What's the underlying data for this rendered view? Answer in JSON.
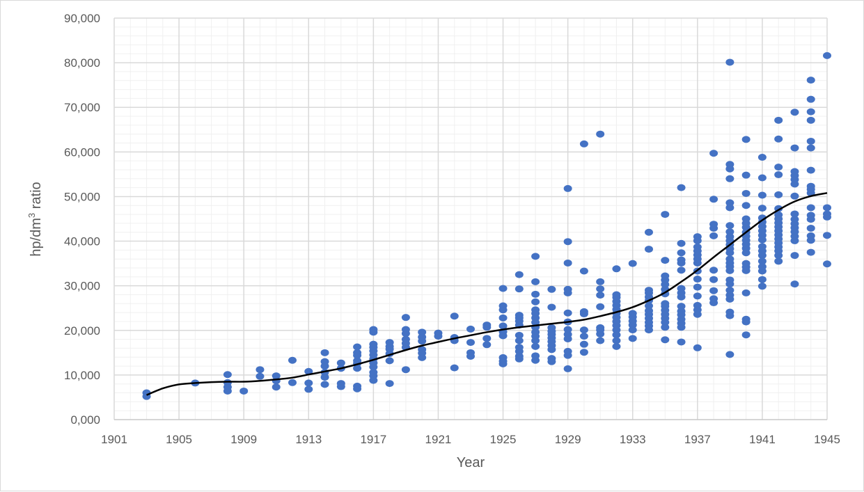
{
  "chart_data": {
    "type": "scatter",
    "xlabel": "Year",
    "ylabel_main": "hp/dm",
    "ylabel_sup": "3",
    "ylabel_tail": " ratio",
    "xlim": [
      1901,
      1945
    ],
    "ylim": [
      0,
      90000
    ],
    "x_ticks": [
      1901,
      1905,
      1909,
      1913,
      1917,
      1921,
      1925,
      1929,
      1933,
      1937,
      1941,
      1945
    ],
    "x_tick_labels": [
      "1901",
      "1905",
      "1909",
      "1913",
      "1917",
      "1921",
      "1925",
      "1929",
      "1933",
      "1937",
      "1941",
      "1945"
    ],
    "y_ticks": [
      0,
      10000,
      20000,
      30000,
      40000,
      50000,
      60000,
      70000,
      80000,
      90000
    ],
    "y_tick_labels": [
      "0,000",
      "10,000",
      "20,000",
      "30,000",
      "40,000",
      "50,000",
      "60,000",
      "70,000",
      "80,000",
      "90,000"
    ],
    "grid": {
      "major": true,
      "minor": true
    },
    "colors": {
      "points": "#4472c4",
      "trend": "#000000",
      "grid_major": "#d9d9d9",
      "grid_minor": "#f0f0f0",
      "text": "#595959"
    },
    "points": [
      [
        1903,
        5200
      ],
      [
        1903,
        6000
      ],
      [
        1906,
        8200
      ],
      [
        1908,
        6400
      ],
      [
        1908,
        7300
      ],
      [
        1908,
        8300
      ],
      [
        1908,
        10100
      ],
      [
        1909,
        6400
      ],
      [
        1910,
        9700
      ],
      [
        1910,
        11200
      ],
      [
        1911,
        7300
      ],
      [
        1911,
        8700
      ],
      [
        1911,
        9800
      ],
      [
        1912,
        8300
      ],
      [
        1912,
        13300
      ],
      [
        1913,
        6800
      ],
      [
        1913,
        8200
      ],
      [
        1913,
        10800
      ],
      [
        1914,
        7900
      ],
      [
        1914,
        9500
      ],
      [
        1914,
        10600
      ],
      [
        1914,
        12000
      ],
      [
        1914,
        13000
      ],
      [
        1914,
        15000
      ],
      [
        1915,
        7400
      ],
      [
        1915,
        8100
      ],
      [
        1915,
        11500
      ],
      [
        1915,
        12700
      ],
      [
        1916,
        6900
      ],
      [
        1916,
        7500
      ],
      [
        1916,
        11500
      ],
      [
        1916,
        12600
      ],
      [
        1916,
        13200
      ],
      [
        1916,
        14400
      ],
      [
        1916,
        15000
      ],
      [
        1916,
        16300
      ],
      [
        1917,
        8800
      ],
      [
        1917,
        9800
      ],
      [
        1917,
        10600
      ],
      [
        1917,
        11800
      ],
      [
        1917,
        12700
      ],
      [
        1917,
        13600
      ],
      [
        1917,
        14500
      ],
      [
        1917,
        15400
      ],
      [
        1917,
        16200
      ],
      [
        1917,
        16900
      ],
      [
        1917,
        19600
      ],
      [
        1917,
        20200
      ],
      [
        1918,
        8100
      ],
      [
        1918,
        13200
      ],
      [
        1918,
        14800
      ],
      [
        1918,
        15800
      ],
      [
        1918,
        16400
      ],
      [
        1918,
        17300
      ],
      [
        1919,
        11200
      ],
      [
        1919,
        16200
      ],
      [
        1919,
        17100
      ],
      [
        1919,
        18000
      ],
      [
        1919,
        19300
      ],
      [
        1919,
        20200
      ],
      [
        1919,
        22900
      ],
      [
        1920,
        13900
      ],
      [
        1920,
        14900
      ],
      [
        1920,
        15700
      ],
      [
        1920,
        17600
      ],
      [
        1920,
        18500
      ],
      [
        1920,
        19600
      ],
      [
        1921,
        18700
      ],
      [
        1921,
        19400
      ],
      [
        1922,
        11600
      ],
      [
        1922,
        17700
      ],
      [
        1922,
        18400
      ],
      [
        1922,
        23200
      ],
      [
        1923,
        14200
      ],
      [
        1923,
        15000
      ],
      [
        1923,
        17300
      ],
      [
        1923,
        20300
      ],
      [
        1924,
        16800
      ],
      [
        1924,
        18200
      ],
      [
        1924,
        20700
      ],
      [
        1924,
        21200
      ],
      [
        1925,
        12500
      ],
      [
        1925,
        13100
      ],
      [
        1925,
        13900
      ],
      [
        1925,
        18800
      ],
      [
        1925,
        19700
      ],
      [
        1925,
        21000
      ],
      [
        1925,
        22800
      ],
      [
        1925,
        24600
      ],
      [
        1925,
        25500
      ],
      [
        1925,
        29400
      ],
      [
        1926,
        13600
      ],
      [
        1926,
        14200
      ],
      [
        1926,
        15300
      ],
      [
        1926,
        16200
      ],
      [
        1926,
        17700
      ],
      [
        1926,
        18900
      ],
      [
        1926,
        21200
      ],
      [
        1926,
        22100
      ],
      [
        1926,
        22800
      ],
      [
        1926,
        23400
      ],
      [
        1926,
        29300
      ],
      [
        1926,
        32500
      ],
      [
        1927,
        13300
      ],
      [
        1927,
        14300
      ],
      [
        1927,
        16400
      ],
      [
        1927,
        17700
      ],
      [
        1927,
        18700
      ],
      [
        1927,
        19600
      ],
      [
        1927,
        20700
      ],
      [
        1927,
        21800
      ],
      [
        1927,
        22800
      ],
      [
        1927,
        23800
      ],
      [
        1927,
        24600
      ],
      [
        1927,
        26400
      ],
      [
        1927,
        28100
      ],
      [
        1927,
        30900
      ],
      [
        1927,
        36600
      ],
      [
        1928,
        13000
      ],
      [
        1928,
        13700
      ],
      [
        1928,
        15700
      ],
      [
        1928,
        16600
      ],
      [
        1928,
        17500
      ],
      [
        1928,
        18300
      ],
      [
        1928,
        19100
      ],
      [
        1928,
        19800
      ],
      [
        1928,
        20600
      ],
      [
        1928,
        25200
      ],
      [
        1928,
        29200
      ],
      [
        1929,
        11400
      ],
      [
        1929,
        14400
      ],
      [
        1929,
        15300
      ],
      [
        1929,
        18100
      ],
      [
        1929,
        19100
      ],
      [
        1929,
        20200
      ],
      [
        1929,
        21900
      ],
      [
        1929,
        23900
      ],
      [
        1929,
        28400
      ],
      [
        1929,
        29200
      ],
      [
        1929,
        35100
      ],
      [
        1929,
        39900
      ],
      [
        1929,
        51800
      ],
      [
        1930,
        15100
      ],
      [
        1930,
        16900
      ],
      [
        1930,
        18700
      ],
      [
        1930,
        20100
      ],
      [
        1930,
        23700
      ],
      [
        1930,
        24200
      ],
      [
        1930,
        33300
      ],
      [
        1930,
        61800
      ],
      [
        1931,
        17700
      ],
      [
        1931,
        19200
      ],
      [
        1931,
        20100
      ],
      [
        1931,
        20600
      ],
      [
        1931,
        25300
      ],
      [
        1931,
        27900
      ],
      [
        1931,
        29300
      ],
      [
        1931,
        30900
      ],
      [
        1931,
        64000
      ],
      [
        1932,
        16400
      ],
      [
        1932,
        17700
      ],
      [
        1932,
        19000
      ],
      [
        1932,
        20100
      ],
      [
        1932,
        21100
      ],
      [
        1932,
        22000
      ],
      [
        1932,
        22900
      ],
      [
        1932,
        23800
      ],
      [
        1932,
        24700
      ],
      [
        1932,
        25600
      ],
      [
        1932,
        26500
      ],
      [
        1932,
        27400
      ],
      [
        1932,
        28000
      ],
      [
        1932,
        33800
      ],
      [
        1933,
        18200
      ],
      [
        1933,
        20100
      ],
      [
        1933,
        21200
      ],
      [
        1933,
        22100
      ],
      [
        1933,
        23000
      ],
      [
        1933,
        23800
      ],
      [
        1933,
        35000
      ],
      [
        1934,
        20100
      ],
      [
        1934,
        21000
      ],
      [
        1934,
        21800
      ],
      [
        1934,
        22700
      ],
      [
        1934,
        23600
      ],
      [
        1934,
        24400
      ],
      [
        1934,
        25500
      ],
      [
        1934,
        26700
      ],
      [
        1934,
        27500
      ],
      [
        1934,
        28400
      ],
      [
        1934,
        29000
      ],
      [
        1934,
        38200
      ],
      [
        1934,
        42000
      ],
      [
        1935,
        17900
      ],
      [
        1935,
        20700
      ],
      [
        1935,
        21800
      ],
      [
        1935,
        22700
      ],
      [
        1935,
        23600
      ],
      [
        1935,
        24500
      ],
      [
        1935,
        25400
      ],
      [
        1935,
        26000
      ],
      [
        1935,
        28200
      ],
      [
        1935,
        29200
      ],
      [
        1935,
        30300
      ],
      [
        1935,
        31300
      ],
      [
        1935,
        32200
      ],
      [
        1935,
        35700
      ],
      [
        1935,
        46000
      ],
      [
        1936,
        17400
      ],
      [
        1936,
        20700
      ],
      [
        1936,
        21600
      ],
      [
        1936,
        22500
      ],
      [
        1936,
        23500
      ],
      [
        1936,
        24300
      ],
      [
        1936,
        25400
      ],
      [
        1936,
        27500
      ],
      [
        1936,
        28400
      ],
      [
        1936,
        29400
      ],
      [
        1936,
        33500
      ],
      [
        1936,
        35100
      ],
      [
        1936,
        35800
      ],
      [
        1936,
        37400
      ],
      [
        1936,
        39500
      ],
      [
        1936,
        52000
      ],
      [
        1937,
        16100
      ],
      [
        1937,
        23600
      ],
      [
        1937,
        24600
      ],
      [
        1937,
        25600
      ],
      [
        1937,
        27700
      ],
      [
        1937,
        29700
      ],
      [
        1937,
        31500
      ],
      [
        1937,
        33300
      ],
      [
        1937,
        35100
      ],
      [
        1937,
        36000
      ],
      [
        1937,
        36900
      ],
      [
        1937,
        37800
      ],
      [
        1937,
        38700
      ],
      [
        1937,
        40100
      ],
      [
        1937,
        41000
      ],
      [
        1938,
        26200
      ],
      [
        1938,
        27100
      ],
      [
        1938,
        28900
      ],
      [
        1938,
        31400
      ],
      [
        1938,
        33500
      ],
      [
        1938,
        41200
      ],
      [
        1938,
        42900
      ],
      [
        1938,
        43800
      ],
      [
        1938,
        49400
      ],
      [
        1938,
        59700
      ],
      [
        1939,
        14600
      ],
      [
        1939,
        23300
      ],
      [
        1939,
        24100
      ],
      [
        1939,
        27000
      ],
      [
        1939,
        27900
      ],
      [
        1939,
        29000
      ],
      [
        1939,
        30400
      ],
      [
        1939,
        31300
      ],
      [
        1939,
        33400
      ],
      [
        1939,
        34300
      ],
      [
        1939,
        35100
      ],
      [
        1939,
        36000
      ],
      [
        1939,
        37400
      ],
      [
        1939,
        38300
      ],
      [
        1939,
        39200
      ],
      [
        1939,
        40100
      ],
      [
        1939,
        41000
      ],
      [
        1939,
        42100
      ],
      [
        1939,
        43500
      ],
      [
        1939,
        47500
      ],
      [
        1939,
        48600
      ],
      [
        1939,
        54000
      ],
      [
        1939,
        56200
      ],
      [
        1939,
        57200
      ],
      [
        1939,
        80100
      ],
      [
        1940,
        19000
      ],
      [
        1940,
        21900
      ],
      [
        1940,
        22500
      ],
      [
        1940,
        28400
      ],
      [
        1940,
        33400
      ],
      [
        1940,
        34200
      ],
      [
        1940,
        35000
      ],
      [
        1940,
        37400
      ],
      [
        1940,
        38400
      ],
      [
        1940,
        39300
      ],
      [
        1940,
        40200
      ],
      [
        1940,
        41100
      ],
      [
        1940,
        42000
      ],
      [
        1940,
        43100
      ],
      [
        1940,
        44000
      ],
      [
        1940,
        45000
      ],
      [
        1940,
        48000
      ],
      [
        1940,
        50700
      ],
      [
        1940,
        54800
      ],
      [
        1940,
        62800
      ],
      [
        1941,
        29900
      ],
      [
        1941,
        31400
      ],
      [
        1941,
        33300
      ],
      [
        1941,
        34300
      ],
      [
        1941,
        35500
      ],
      [
        1941,
        36800
      ],
      [
        1941,
        37800
      ],
      [
        1941,
        38800
      ],
      [
        1941,
        40300
      ],
      [
        1941,
        41300
      ],
      [
        1941,
        42300
      ],
      [
        1941,
        43300
      ],
      [
        1941,
        44300
      ],
      [
        1941,
        45200
      ],
      [
        1941,
        47400
      ],
      [
        1941,
        50300
      ],
      [
        1941,
        54200
      ],
      [
        1941,
        58800
      ],
      [
        1942,
        35500
      ],
      [
        1942,
        36800
      ],
      [
        1942,
        37800
      ],
      [
        1942,
        38700
      ],
      [
        1942,
        39600
      ],
      [
        1942,
        40500
      ],
      [
        1942,
        41400
      ],
      [
        1942,
        42300
      ],
      [
        1942,
        43200
      ],
      [
        1942,
        44100
      ],
      [
        1942,
        45000
      ],
      [
        1942,
        45900
      ],
      [
        1942,
        47300
      ],
      [
        1942,
        50400
      ],
      [
        1942,
        54900
      ],
      [
        1942,
        56600
      ],
      [
        1942,
        62900
      ],
      [
        1942,
        67100
      ],
      [
        1943,
        30400
      ],
      [
        1943,
        36800
      ],
      [
        1943,
        40100
      ],
      [
        1943,
        41100
      ],
      [
        1943,
        42100
      ],
      [
        1943,
        43000
      ],
      [
        1943,
        43900
      ],
      [
        1943,
        44900
      ],
      [
        1943,
        46100
      ],
      [
        1943,
        50100
      ],
      [
        1943,
        52800
      ],
      [
        1943,
        53800
      ],
      [
        1943,
        54700
      ],
      [
        1943,
        55600
      ],
      [
        1943,
        60900
      ],
      [
        1943,
        68900
      ],
      [
        1944,
        37500
      ],
      [
        1944,
        40200
      ],
      [
        1944,
        41200
      ],
      [
        1944,
        42900
      ],
      [
        1944,
        44900
      ],
      [
        1944,
        45800
      ],
      [
        1944,
        47500
      ],
      [
        1944,
        50800
      ],
      [
        1944,
        51600
      ],
      [
        1944,
        52300
      ],
      [
        1944,
        55900
      ],
      [
        1944,
        60900
      ],
      [
        1944,
        62400
      ],
      [
        1944,
        67100
      ],
      [
        1944,
        69000
      ],
      [
        1944,
        71800
      ],
      [
        1944,
        76100
      ],
      [
        1945,
        34900
      ],
      [
        1945,
        41300
      ],
      [
        1945,
        45400
      ],
      [
        1945,
        46100
      ],
      [
        1945,
        47500
      ],
      [
        1945,
        81600
      ]
    ],
    "trend": [
      [
        1903,
        5500
      ],
      [
        1904,
        7000
      ],
      [
        1905,
        7900
      ],
      [
        1906,
        8200
      ],
      [
        1907,
        8400
      ],
      [
        1908,
        8500
      ],
      [
        1909,
        8500
      ],
      [
        1910,
        8700
      ],
      [
        1911,
        9000
      ],
      [
        1912,
        9400
      ],
      [
        1913,
        10100
      ],
      [
        1914,
        10800
      ],
      [
        1915,
        11500
      ],
      [
        1916,
        12400
      ],
      [
        1917,
        13400
      ],
      [
        1918,
        14500
      ],
      [
        1919,
        15600
      ],
      [
        1920,
        16600
      ],
      [
        1921,
        17400
      ],
      [
        1922,
        18200
      ],
      [
        1923,
        18900
      ],
      [
        1924,
        19600
      ],
      [
        1925,
        20200
      ],
      [
        1926,
        20700
      ],
      [
        1927,
        21100
      ],
      [
        1928,
        21500
      ],
      [
        1929,
        21900
      ],
      [
        1930,
        22400
      ],
      [
        1931,
        23200
      ],
      [
        1932,
        24100
      ],
      [
        1933,
        25200
      ],
      [
        1934,
        26700
      ],
      [
        1935,
        28500
      ],
      [
        1936,
        30900
      ],
      [
        1937,
        33500
      ],
      [
        1938,
        36400
      ],
      [
        1939,
        39200
      ],
      [
        1940,
        42000
      ],
      [
        1941,
        44700
      ],
      [
        1942,
        47000
      ],
      [
        1943,
        48900
      ],
      [
        1944,
        50100
      ],
      [
        1945,
        50800
      ]
    ]
  }
}
